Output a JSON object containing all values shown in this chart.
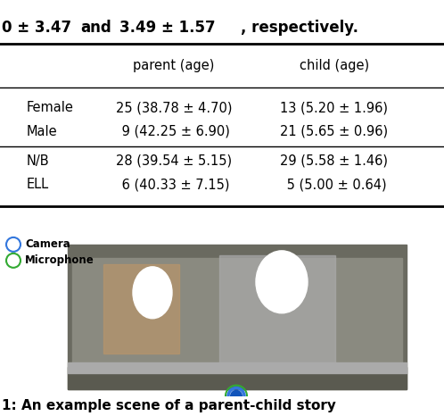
{
  "title_text": "0 ± 3.47 and 3.49 ± 1.57, respectively.",
  "caption_text": "1: An example scene of a parent-child story",
  "col_headers": [
    "",
    "parent (age)",
    "child (age)"
  ],
  "rows": [
    [
      "Female",
      "25 (38.78 ± 4.70)",
      "13 (5.20 ± 1.96)"
    ],
    [
      "Male",
      " 9 (42.25 ± 6.90)",
      "21 (5.65 ± 0.96)"
    ],
    [
      "N/B",
      "28 (39.54 ± 5.15)",
      "29 (5.58 ± 1.46)"
    ],
    [
      "ELL",
      " 6 (40.33 ± 7.15)",
      " 5 (5.00 ± 0.64)"
    ]
  ],
  "legend_items": [
    {
      "label": "Camera",
      "color": "#3377dd"
    },
    {
      "label": "Microphone",
      "color": "#33aa33"
    }
  ],
  "bg_color": "#ffffff",
  "title_fontsize": 12,
  "table_fontsize": 10.5,
  "caption_fontsize": 11,
  "photo_bg": "#7a7a6a",
  "photo_dark": "#555550",
  "photo_mid": "#888878"
}
